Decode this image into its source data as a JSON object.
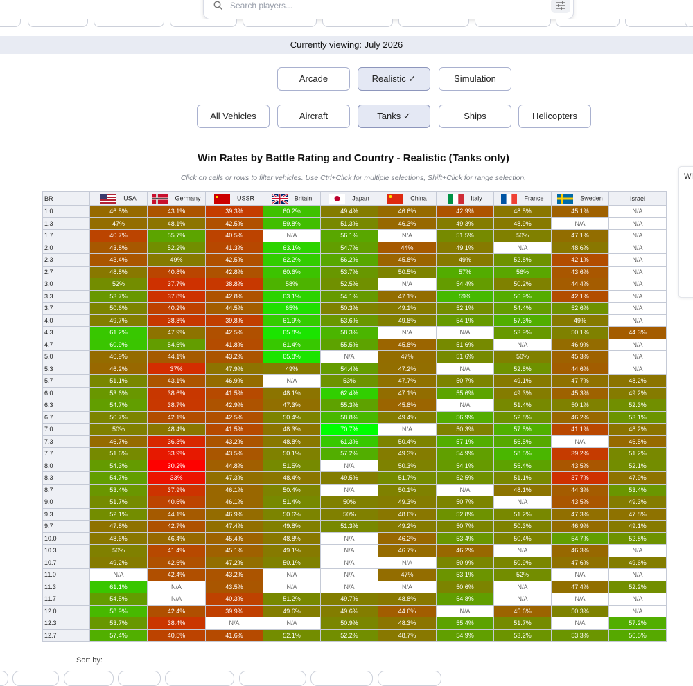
{
  "search": {
    "placeholder": "Search players..."
  },
  "banner": {
    "text": "Currently viewing: July 2026"
  },
  "modes": [
    {
      "label": "Arcade",
      "selected": false
    },
    {
      "label": "Realistic",
      "selected": true
    },
    {
      "label": "Simulation",
      "selected": false
    }
  ],
  "vehicle_types": [
    {
      "label": "All Vehicles",
      "selected": false
    },
    {
      "label": "Aircraft",
      "selected": false
    },
    {
      "label": "Tanks",
      "selected": true
    },
    {
      "label": "Ships",
      "selected": false
    },
    {
      "label": "Helicopters",
      "selected": false
    }
  ],
  "check_mark": "✓",
  "chart": {
    "title": "Win Rates by Battle Rating and Country - Realistic (Tanks only)",
    "hint": "Click on cells or rows to filter vehicles. Use Ctrl+Click for multiple selections, Shift+Click for range selection.",
    "br_header": "BR",
    "na_label": "N/A"
  },
  "side_panel": {
    "text": "Wi"
  },
  "sort": {
    "label": "Sort by:"
  },
  "chart_data": {
    "type": "heatmap",
    "title": "Win Rates by Battle Rating and Country - Realistic (Tanks only)",
    "value_unit": "%",
    "color_scale": {
      "low": "#ff0000",
      "mid": "#808000",
      "high": "#00ff00",
      "na": "#ffffff"
    },
    "columns": [
      "USA",
      "Germany",
      "USSR",
      "Britain",
      "Japan",
      "China",
      "Italy",
      "France",
      "Sweden",
      "Israel"
    ],
    "rows": [
      {
        "br": "1.0",
        "values": [
          46.5,
          43.1,
          39.3,
          60.2,
          49.4,
          46.6,
          42.9,
          48.5,
          45.1,
          null
        ]
      },
      {
        "br": "1.3",
        "values": [
          47,
          48.1,
          42.5,
          59.8,
          51.3,
          46.3,
          49.3,
          48.9,
          null,
          null
        ]
      },
      {
        "br": "1.7",
        "values": [
          40.7,
          55.7,
          40.5,
          null,
          56.1,
          null,
          51.5,
          50,
          47.1,
          null
        ]
      },
      {
        "br": "2.0",
        "values": [
          43.8,
          52.2,
          41.3,
          63.1,
          54.7,
          44,
          49.1,
          null,
          48.6,
          null
        ]
      },
      {
        "br": "2.3",
        "values": [
          43.4,
          49,
          42.5,
          62.2,
          56.2,
          45.8,
          49,
          52.8,
          42.1,
          null
        ]
      },
      {
        "br": "2.7",
        "values": [
          48.8,
          40.8,
          42.8,
          60.6,
          53.7,
          50.5,
          57,
          56,
          43.6,
          null
        ]
      },
      {
        "br": "3.0",
        "values": [
          52,
          37.7,
          38.8,
          58,
          52.5,
          null,
          54.4,
          50.2,
          44.4,
          null
        ]
      },
      {
        "br": "3.3",
        "values": [
          53.7,
          37.8,
          42.8,
          63.1,
          54.1,
          47.1,
          59,
          56.9,
          42.1,
          null
        ]
      },
      {
        "br": "3.7",
        "values": [
          50.6,
          40.2,
          44.5,
          65,
          50.3,
          49.1,
          52.1,
          54.4,
          52.6,
          null
        ]
      },
      {
        "br": "4.0",
        "values": [
          49.7,
          38.8,
          39.8,
          61.9,
          53.6,
          49.8,
          54.1,
          57.3,
          49,
          null
        ]
      },
      {
        "br": "4.3",
        "values": [
          61.2,
          47.9,
          42.5,
          65.8,
          58.3,
          null,
          null,
          53.9,
          50.1,
          44.3
        ]
      },
      {
        "br": "4.7",
        "values": [
          60.9,
          54.6,
          41.8,
          61.4,
          55.5,
          45.8,
          51.6,
          null,
          46.9,
          null
        ]
      },
      {
        "br": "5.0",
        "values": [
          46.9,
          44.1,
          43.2,
          65.8,
          null,
          47,
          51.6,
          50,
          45.3,
          null
        ]
      },
      {
        "br": "5.3",
        "values": [
          46.2,
          37,
          47.9,
          49,
          54.4,
          47.2,
          null,
          52.8,
          44.6,
          null
        ]
      },
      {
        "br": "5.7",
        "values": [
          51.1,
          43.1,
          46.9,
          null,
          53,
          47.7,
          50.7,
          49.1,
          47.7,
          48.2
        ]
      },
      {
        "br": "6.0",
        "values": [
          53.6,
          38.6,
          41.5,
          48.1,
          62.4,
          47.1,
          55.6,
          49.3,
          45.3,
          49.2
        ]
      },
      {
        "br": "6.3",
        "values": [
          54.7,
          38.7,
          42.9,
          47.3,
          55.3,
          45.8,
          null,
          51.4,
          50.1,
          52.3
        ]
      },
      {
        "br": "6.7",
        "values": [
          50.7,
          42.1,
          42.5,
          50.4,
          58.8,
          49.4,
          56.9,
          52.8,
          46.2,
          53.1
        ]
      },
      {
        "br": "7.0",
        "values": [
          50,
          48.4,
          41.5,
          48.3,
          70.7,
          null,
          50.3,
          57.5,
          41.1,
          48.2
        ]
      },
      {
        "br": "7.3",
        "values": [
          46.7,
          36.3,
          43.2,
          48.8,
          61.3,
          50.4,
          57.1,
          56.5,
          null,
          46.5
        ]
      },
      {
        "br": "7.7",
        "values": [
          51.6,
          33.9,
          43.5,
          50.1,
          57.2,
          49.3,
          54.9,
          58.5,
          39.2,
          51.2
        ]
      },
      {
        "br": "8.0",
        "values": [
          54.3,
          30.2,
          44.8,
          51.5,
          null,
          50.3,
          54.1,
          55.4,
          43.5,
          52.1
        ]
      },
      {
        "br": "8.3",
        "values": [
          54.7,
          33,
          47.3,
          48.4,
          49.5,
          51.7,
          52.5,
          51.1,
          37.7,
          47.9
        ]
      },
      {
        "br": "8.7",
        "values": [
          53.4,
          37.9,
          46.1,
          50.4,
          null,
          50.1,
          null,
          48.1,
          44.3,
          53.4
        ]
      },
      {
        "br": "9.0",
        "values": [
          51.7,
          40.6,
          46.1,
          51.4,
          50,
          49.3,
          50.7,
          null,
          43.5,
          49.3
        ]
      },
      {
        "br": "9.3",
        "values": [
          52.1,
          44.1,
          46.9,
          50.6,
          50,
          48.6,
          52.8,
          51.2,
          47.3,
          47.8
        ]
      },
      {
        "br": "9.7",
        "values": [
          47.8,
          42.7,
          47.4,
          49.8,
          51.3,
          49.2,
          50.7,
          50.3,
          46.9,
          49.1
        ]
      },
      {
        "br": "10.0",
        "values": [
          48.6,
          46.4,
          45.4,
          48.8,
          null,
          46.2,
          53.4,
          50.4,
          54.7,
          52.8
        ]
      },
      {
        "br": "10.3",
        "values": [
          50,
          41.4,
          45.1,
          49.1,
          null,
          46.7,
          46.2,
          null,
          46.3,
          null
        ]
      },
      {
        "br": "10.7",
        "values": [
          49.2,
          42.6,
          47.2,
          50.1,
          null,
          null,
          50.9,
          50.9,
          47.6,
          49.6
        ]
      },
      {
        "br": "11.0",
        "values": [
          null,
          42.4,
          43.2,
          null,
          null,
          47,
          53.1,
          52,
          null,
          null
        ]
      },
      {
        "br": "11.3",
        "values": [
          61.1,
          null,
          43.5,
          null,
          null,
          null,
          50.6,
          null,
          47.4,
          52.2
        ]
      },
      {
        "br": "11.7",
        "values": [
          54.5,
          null,
          40.3,
          51.2,
          49.7,
          48.8,
          54.8,
          null,
          null,
          null
        ]
      },
      {
        "br": "12.0",
        "values": [
          58.9,
          42.4,
          39.9,
          49.6,
          49.6,
          44.6,
          null,
          45.6,
          50.3,
          null
        ]
      },
      {
        "br": "12.3",
        "values": [
          53.7,
          38.4,
          null,
          null,
          50.9,
          48.3,
          55.4,
          51.7,
          null,
          57.2
        ]
      },
      {
        "br": "12.7",
        "values": [
          57.4,
          40.5,
          41.6,
          52.1,
          52.2,
          48.7,
          54.9,
          53.2,
          53.3,
          56.5
        ]
      }
    ]
  }
}
